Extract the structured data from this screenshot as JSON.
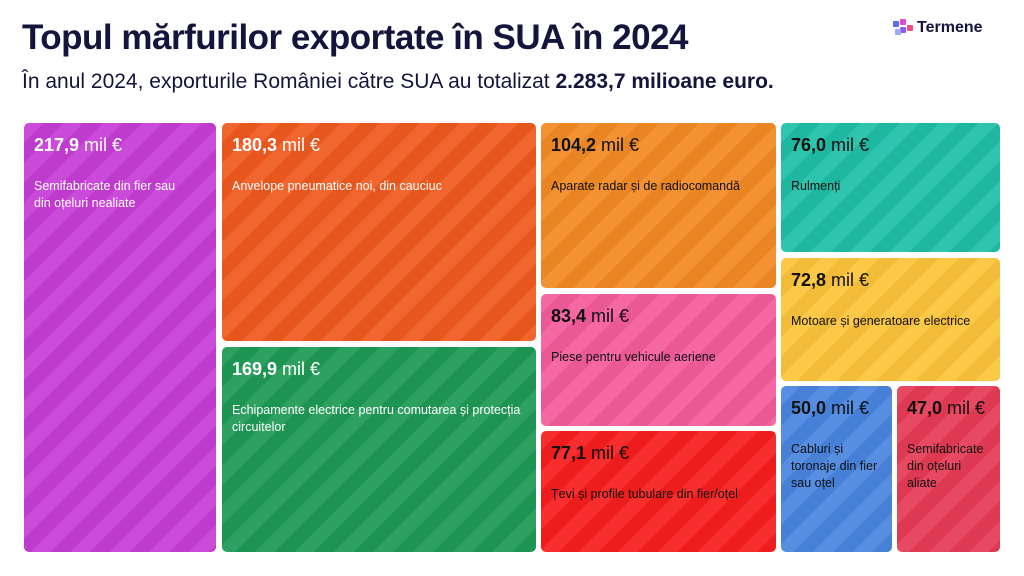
{
  "header": {
    "title": "Topul mărfurilor exportate în SUA în 2024",
    "subtitle_prefix": "În anul 2024, exporturile României către SUA au totalizat ",
    "subtitle_bold": "2.283,7 milioane euro.",
    "logo": "Termene"
  },
  "chart_data": {
    "type": "treemap",
    "unit": "mil €",
    "items": [
      {
        "value": "217,9",
        "label": "Semifabricate din fier sau din oțeluri nealiate",
        "color": "#c63dd6"
      },
      {
        "value": "180,3",
        "label": "Anvelope pneumatice noi, din cauciuc",
        "color": "#f05a1e"
      },
      {
        "value": "169,9",
        "label": "Echipamente electrice pentru comutarea și protecția circuitelor",
        "color": "#1e9a55"
      },
      {
        "value": "104,2",
        "label": "Aparate radar și de radiocomandă",
        "color": "#f28a24"
      },
      {
        "value": "83,4",
        "label": "Piese pentru vehicule aeriene",
        "color": "#f45c9c"
      },
      {
        "value": "77,1",
        "label": "Țevi și profile tubulare din fier/oțel",
        "color": "#f81e1e"
      },
      {
        "value": "76,0",
        "label": "Rulmenți",
        "color": "#1fbfa8"
      },
      {
        "value": "72,8",
        "label": "Motoare și generatoare electrice",
        "color": "#fcc43a"
      },
      {
        "value": "50,0",
        "label": "Cabluri și toronaje din fier sau oțel",
        "color": "#4a86e0"
      },
      {
        "value": "47,0",
        "label": "Semifabricate din oțeluri aliate",
        "color": "#e63b56"
      }
    ]
  }
}
